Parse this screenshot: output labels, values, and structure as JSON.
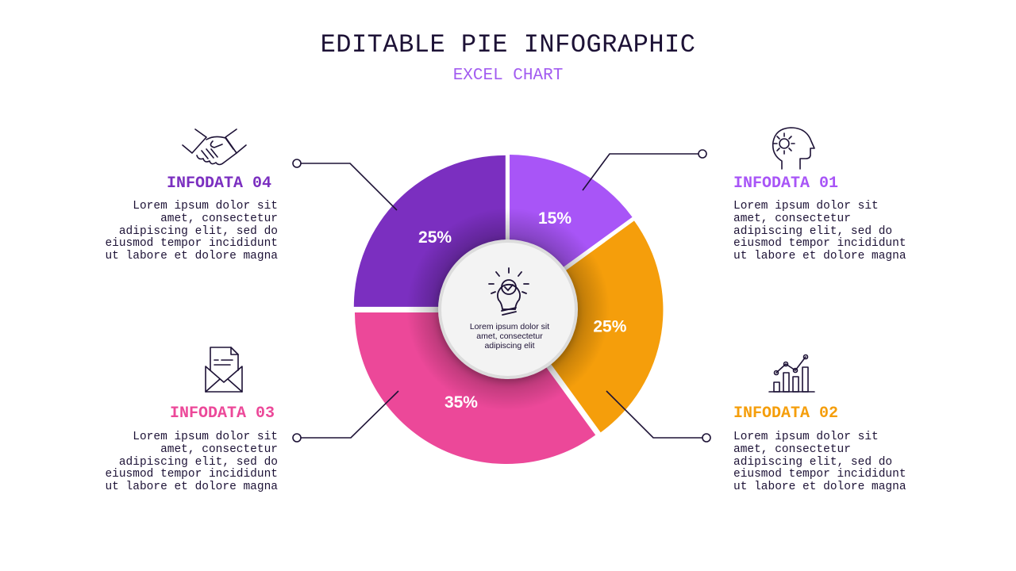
{
  "title": "EDITABLE PIE INFOGRAPHIC",
  "subtitle": "EXCEL CHART",
  "center_text": "Lorem ipsum dolor sit amet, consectetur adipiscing elit",
  "blocks": [
    {
      "title": "INFODATA 01",
      "color": "#a855f7",
      "icon": "head-gear-icon",
      "body": "Lorem ipsum dolor sit amet, consectetur adipiscing elit, sed do eiusmod tempor incididunt ut labore et dolore magna"
    },
    {
      "title": "INFODATA 02",
      "color": "#f59e0b",
      "icon": "bar-chart-trend-icon",
      "body": "Lorem ipsum dolor sit amet, consectetur adipiscing elit, sed do eiusmod tempor incididunt ut labore et dolore magna"
    },
    {
      "title": "INFODATA 03",
      "color": "#ec4899",
      "icon": "envelope-document-icon",
      "body": "Lorem ipsum dolor sit amet, consectetur adipiscing elit, sed do eiusmod tempor incididunt ut labore et dolore magna"
    },
    {
      "title": "INFODATA 04",
      "color": "#7b2fc0",
      "icon": "handshake-icon",
      "body": "Lorem ipsum dolor sit amet, consectetur adipiscing elit, sed do eiusmod tempor incididunt ut labore et dolore magna"
    }
  ],
  "chart_data": {
    "type": "pie",
    "categories": [
      "INFODATA 01",
      "INFODATA 02",
      "INFODATA 03",
      "INFODATA 04"
    ],
    "values": [
      15,
      25,
      35,
      25
    ],
    "labels": [
      "15%",
      "25%",
      "35%",
      "25%"
    ],
    "colors": [
      "#a855f7",
      "#f59e0b",
      "#ec4899",
      "#7b2fc0"
    ],
    "center_icon": "lightbulb-check-icon"
  }
}
